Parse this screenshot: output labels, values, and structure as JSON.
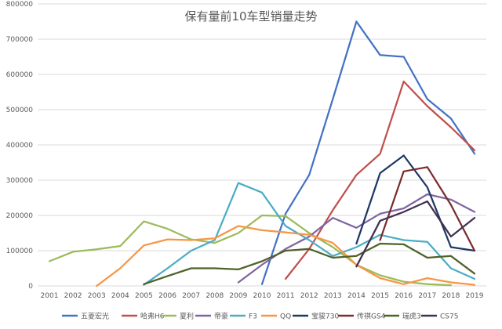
{
  "chart_data": {
    "type": "line",
    "title": "保有量前10车型销量走势",
    "xlabel": "",
    "ylabel": "",
    "x": [
      2001,
      2002,
      2003,
      2004,
      2005,
      2006,
      2007,
      2008,
      2009,
      2010,
      2011,
      2012,
      2013,
      2014,
      2015,
      2016,
      2017,
      2018,
      2019
    ],
    "ylim": [
      0,
      800000
    ],
    "yticks": [
      0,
      100000,
      200000,
      300000,
      400000,
      500000,
      600000,
      700000,
      800000
    ],
    "grid": true,
    "legend_position": "bottom",
    "series": [
      {
        "name": "五菱宏光",
        "color": "#4472C4",
        "values": [
          null,
          null,
          null,
          null,
          null,
          null,
          null,
          null,
          null,
          5000,
          205000,
          315000,
          530000,
          750000,
          655000,
          650000,
          530000,
          475000,
          375000
        ]
      },
      {
        "name": "哈弗H6",
        "color": "#C0504D",
        "values": [
          null,
          null,
          null,
          null,
          null,
          null,
          null,
          null,
          null,
          null,
          20000,
          105000,
          215000,
          315000,
          375000,
          580000,
          510000,
          450000,
          385000
        ]
      },
      {
        "name": "夏利",
        "color": "#9BBB59",
        "values": [
          70000,
          97000,
          104000,
          113000,
          183000,
          162000,
          132000,
          122000,
          150000,
          200000,
          198000,
          150000,
          110000,
          60000,
          30000,
          12000,
          5000,
          2000,
          null
        ]
      },
      {
        "name": "帝豪",
        "color": "#8064A2",
        "values": [
          null,
          null,
          null,
          null,
          null,
          null,
          null,
          null,
          10000,
          60000,
          105000,
          140000,
          193000,
          165000,
          205000,
          220000,
          260000,
          245000,
          210000
        ]
      },
      {
        "name": "F3",
        "color": "#4BACC6",
        "values": [
          null,
          null,
          null,
          null,
          3000,
          50000,
          100000,
          130000,
          292000,
          265000,
          170000,
          130000,
          85000,
          110000,
          145000,
          130000,
          125000,
          50000,
          20000
        ]
      },
      {
        "name": "QQ",
        "color": "#F79646",
        "values": [
          null,
          null,
          0,
          50000,
          115000,
          132000,
          130000,
          135000,
          170000,
          158000,
          152000,
          145000,
          122000,
          60000,
          22000,
          5000,
          22000,
          10000,
          3000
        ]
      },
      {
        "name": "宝骏730",
        "color": "#1F3864",
        "values": [
          null,
          null,
          null,
          null,
          null,
          null,
          null,
          null,
          null,
          null,
          null,
          null,
          null,
          120000,
          320000,
          370000,
          280000,
          110000,
          100000
        ]
      },
      {
        "name": "传祺GS4",
        "color": "#7B2C2C",
        "values": [
          null,
          null,
          null,
          null,
          null,
          null,
          null,
          null,
          null,
          null,
          null,
          null,
          null,
          null,
          130000,
          325000,
          337000,
          230000,
          100000
        ]
      },
      {
        "name": "瑞虎3",
        "color": "#4F6228",
        "values": [
          null,
          null,
          null,
          null,
          5000,
          28000,
          50000,
          50000,
          47000,
          70000,
          100000,
          105000,
          80000,
          85000,
          120000,
          118000,
          80000,
          85000,
          35000
        ]
      },
      {
        "name": "CS75",
        "color": "#403151",
        "values": [
          null,
          null,
          null,
          null,
          null,
          null,
          null,
          null,
          null,
          null,
          null,
          null,
          null,
          55000,
          185000,
          210000,
          240000,
          140000,
          193000
        ]
      }
    ]
  }
}
